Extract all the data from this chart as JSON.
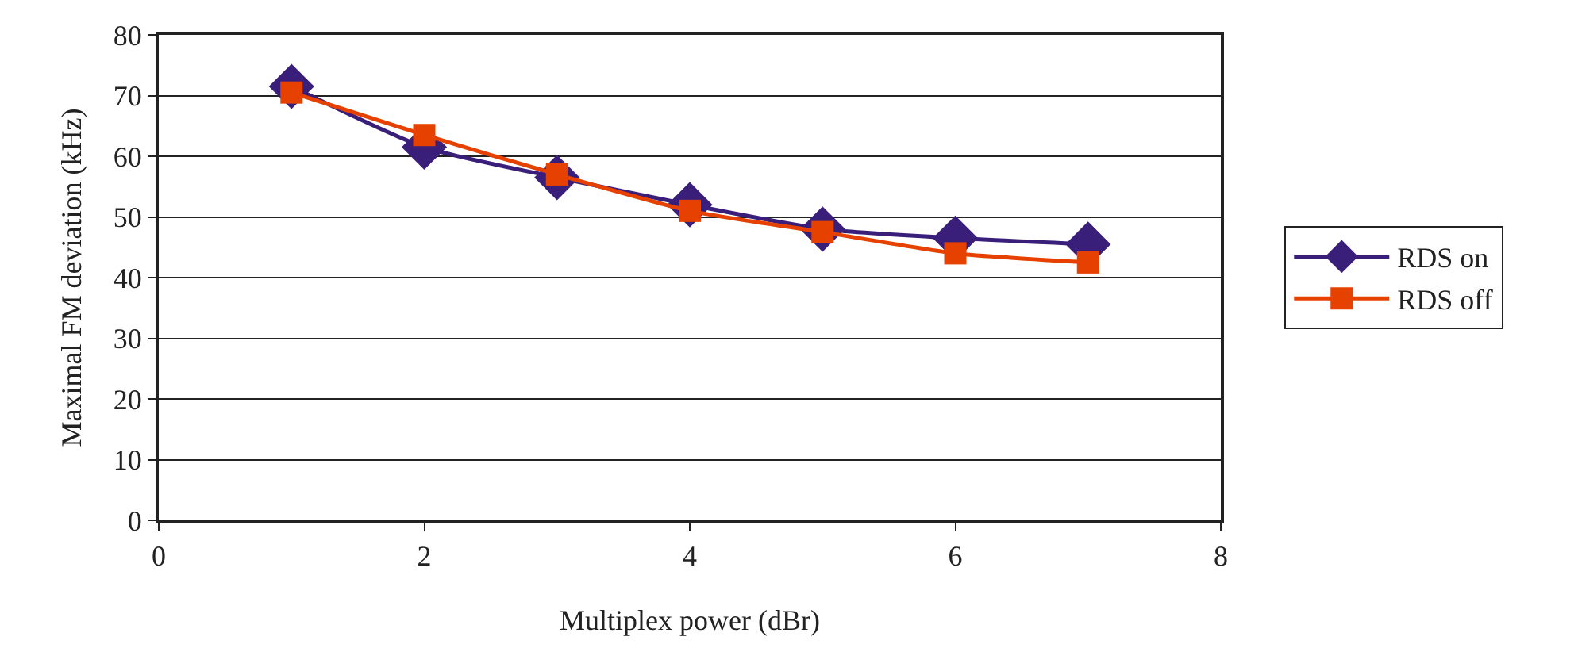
{
  "chart_data": {
    "type": "line",
    "xlabel": "Multiplex power (dBr)",
    "ylabel": "Maximal FM deviation (kHz)",
    "x": [
      1,
      2,
      3,
      4,
      5,
      6,
      7
    ],
    "series": [
      {
        "name": "RDS on",
        "color": "#3a1f7a",
        "marker": "diamond",
        "values": [
          71.5,
          61.5,
          56.5,
          52,
          48,
          46.5,
          45.5
        ]
      },
      {
        "name": "RDS off",
        "color": "#e64100",
        "marker": "square",
        "values": [
          70.5,
          63.5,
          57,
          51,
          47.5,
          44,
          42.5
        ]
      }
    ],
    "xlim": [
      0,
      8
    ],
    "xticks": [
      0,
      2,
      4,
      6,
      8
    ],
    "ylim": [
      0,
      80
    ],
    "yticks": [
      0,
      10,
      20,
      30,
      40,
      50,
      60,
      70,
      80
    ],
    "grid": "y",
    "legend": "right",
    "line_style": "solid"
  }
}
